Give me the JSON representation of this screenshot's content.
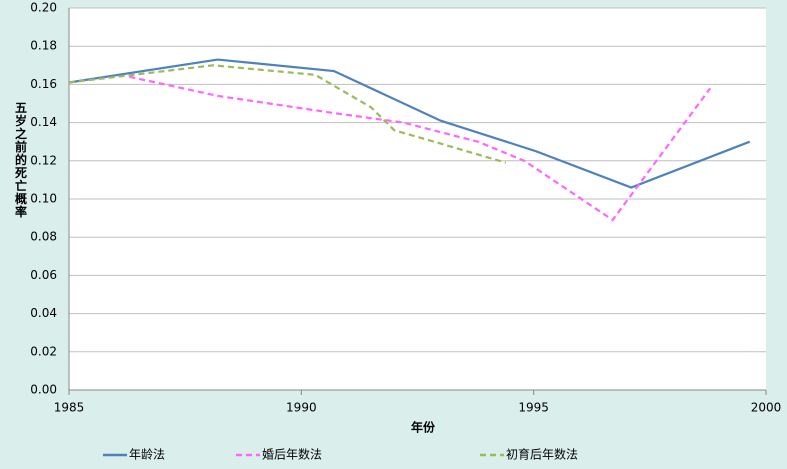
{
  "chart_data": {
    "type": "line",
    "x_label": "年份",
    "y_label": "五岁之前的死亡概率",
    "xlim": [
      1985,
      2000
    ],
    "xticks": [
      1985,
      1990,
      1995,
      2000
    ],
    "ylim": [
      0,
      0.2
    ],
    "yticks": [
      {
        "value": 0,
        "label": "0.00"
      },
      {
        "value": 0.02,
        "label": "0.02"
      },
      {
        "value": 0.04,
        "label": "0.04"
      },
      {
        "value": 0.06,
        "label": "0.06"
      },
      {
        "value": 0.08,
        "label": "0.08"
      },
      {
        "value": 0.1,
        "label": "0.10"
      },
      {
        "value": 0.12,
        "label": "0.12"
      },
      {
        "value": 0.14,
        "label": "0.14"
      },
      {
        "value": 0.16,
        "label": "0.16"
      },
      {
        "value": 0.18,
        "label": "0.18"
      },
      {
        "value": 0.2,
        "label": "0.20"
      }
    ],
    "grid": true,
    "legend": "bottom",
    "series": [
      {
        "name": "年龄法",
        "color": "#4f81bd",
        "dash": false,
        "x": [
          1985,
          1988.2,
          1990.7,
          1993.0,
          1995.05,
          1997.1,
          1999.65
        ],
        "values": [
          0.161,
          0.173,
          0.167,
          0.141,
          0.125,
          0.106,
          0.13
        ]
      },
      {
        "name": "婚后年数法",
        "color": "#ff66ff",
        "dash": true,
        "x": [
          1986.3,
          1988.2,
          1990.7,
          1992.2,
          1993.8,
          1994.8,
          1996.7,
          1998.8
        ],
        "values": [
          0.164,
          0.154,
          0.145,
          0.14,
          0.13,
          0.12,
          0.089,
          0.158
        ]
      },
      {
        "name": "初育后年数法",
        "color": "#9bbb59",
        "dash": true,
        "x": [
          1985,
          1988.1,
          1990.3,
          1991.5,
          1992.0,
          1993.0,
          1994.4
        ],
        "values": [
          0.161,
          0.17,
          0.165,
          0.148,
          0.136,
          0.129,
          0.119
        ]
      }
    ]
  }
}
